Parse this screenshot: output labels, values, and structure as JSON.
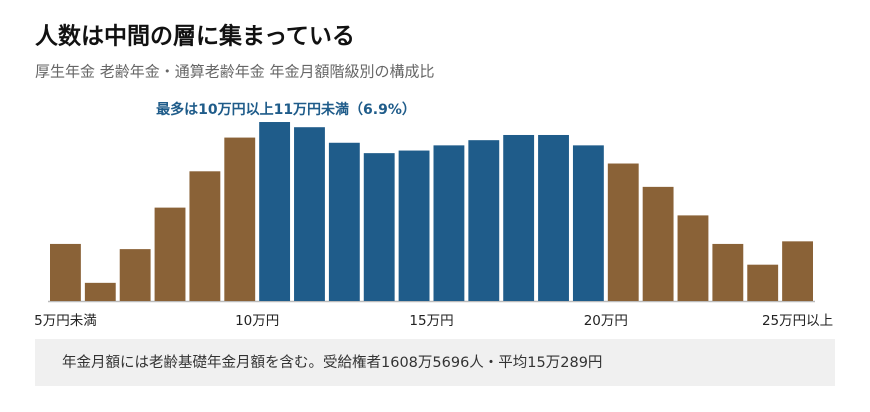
{
  "chart_data": {
    "type": "bar",
    "title": "人数は中間の層に集まっている",
    "subtitle": "厚生年金 老齢年金・通算老齢年金 年金月額階級別の構成比",
    "annotation": "最多は10万円以上11万円未満（6.9%）",
    "note": "年金月額には老齢基礎年金月額を含む。受給権者1608万5696人・平均15万289円",
    "categories": [
      "5万円未満",
      null,
      null,
      null,
      null,
      null,
      "10万円",
      null,
      null,
      null,
      null,
      "15万円",
      null,
      null,
      null,
      null,
      "20万円",
      null,
      null,
      null,
      null,
      "25万円以上"
    ],
    "values": [
      2.2,
      0.7,
      2.0,
      3.6,
      5.0,
      6.3,
      6.9,
      6.7,
      6.1,
      5.7,
      5.8,
      6.0,
      6.2,
      6.4,
      6.4,
      6.0,
      5.3,
      4.4,
      3.3,
      2.2,
      1.4,
      2.3
    ],
    "colors": [
      "#8a6237",
      "#8a6237",
      "#8a6237",
      "#8a6237",
      "#8a6237",
      "#8a6237",
      "#1f5c8a",
      "#1f5c8a",
      "#1f5c8a",
      "#1f5c8a",
      "#1f5c8a",
      "#1f5c8a",
      "#1f5c8a",
      "#1f5c8a",
      "#1f5c8a",
      "#1f5c8a",
      "#8a6237",
      "#8a6237",
      "#8a6237",
      "#8a6237",
      "#8a6237",
      "#8a6237"
    ],
    "ylim": [
      0,
      7
    ],
    "grid": false
  }
}
